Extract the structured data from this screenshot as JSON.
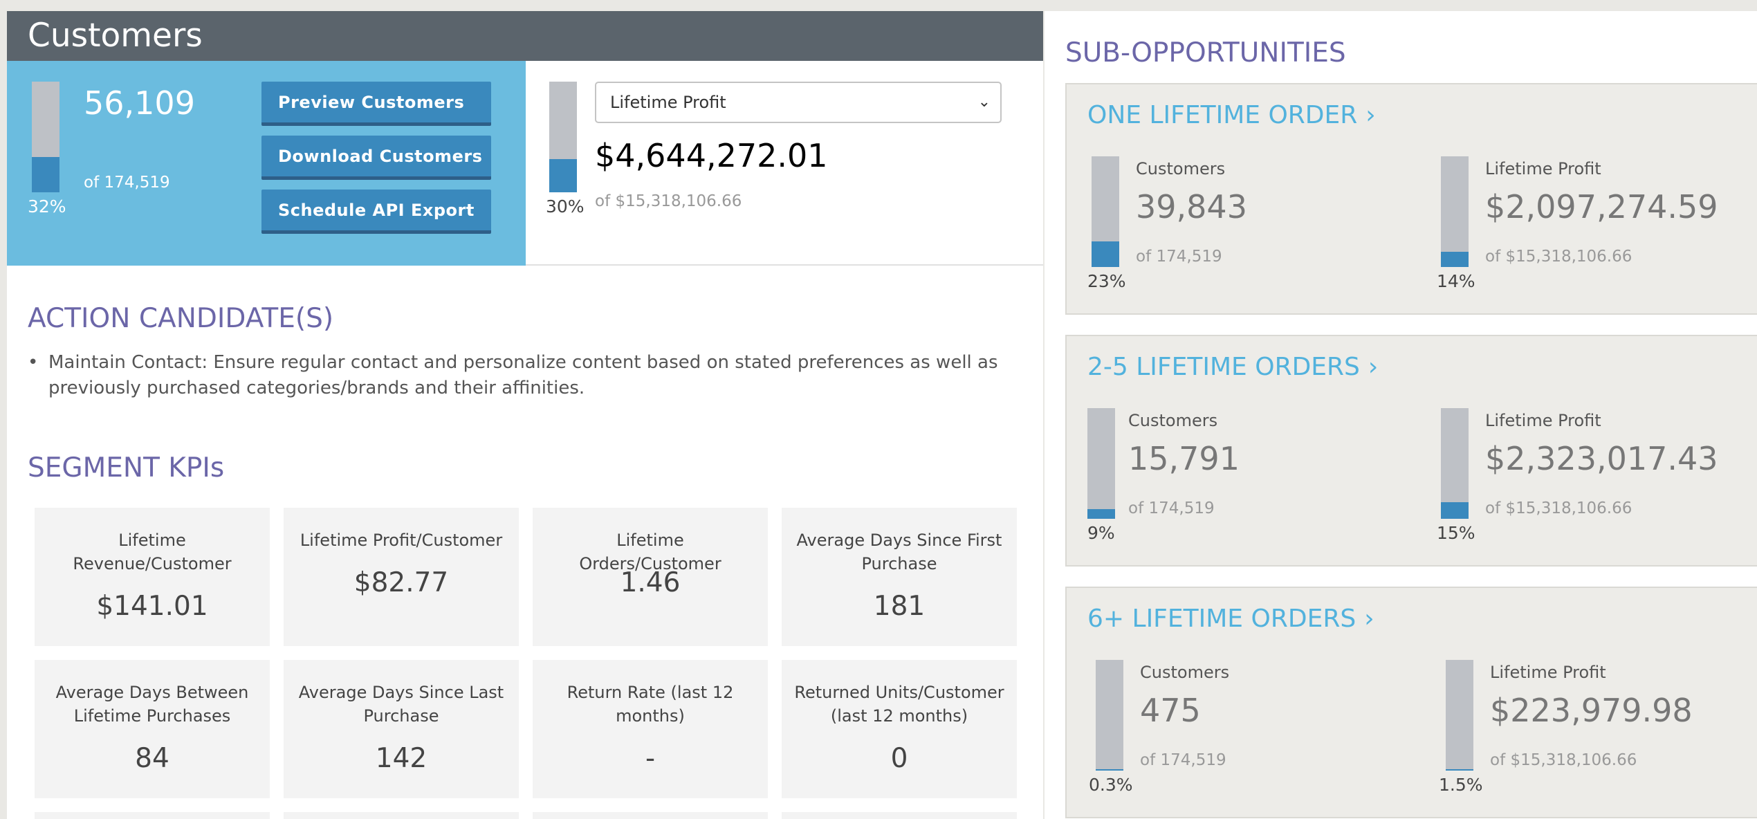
{
  "header": {
    "title": "Customers"
  },
  "summary": {
    "count": "56,109",
    "of": "of 174,519",
    "pct_label": "32%",
    "pct": 0.32,
    "buttons": {
      "preview": "Preview Customers",
      "download": "Download Customers",
      "schedule": "Schedule API Export"
    },
    "metric": {
      "selected": "Lifetime Profit",
      "value": "$4,644,272.01",
      "of": "of $15,318,106.66",
      "pct_label": "30%",
      "pct": 0.3
    }
  },
  "action_candidates": {
    "title": "ACTION CANDIDATE(S)",
    "items": [
      "Maintain Contact: Ensure regular contact and personalize content based on stated preferences as well as previously purchased categories/brands and their affinities."
    ]
  },
  "segment_kpis": {
    "title": "SEGMENT KPIs",
    "items": [
      {
        "label": "Lifetime Revenue/Customer",
        "value": "$141.01"
      },
      {
        "label": "Lifetime Profit/Customer",
        "value": "$82.77"
      },
      {
        "label": "Lifetime Orders/Customer",
        "value": "1.46"
      },
      {
        "label": "Average Days Since First Purchase",
        "value": "181"
      },
      {
        "label": "Average Days Between Lifetime Purchases",
        "value": "84"
      },
      {
        "label": "Average Days Since Last Purchase",
        "value": "142"
      },
      {
        "label": "Return Rate (last 12 months)",
        "value": "-"
      },
      {
        "label": "Returned Units/Customer (last 12 months)",
        "value": "0"
      }
    ]
  },
  "sub_opportunities": {
    "title": "SUB-OPPORTUNITIES",
    "arrow": "›",
    "cards": [
      {
        "title": "ONE LIFETIME ORDER",
        "customers": {
          "label": "Customers",
          "value": "39,843",
          "of": "of 174,519",
          "pct_label": "23%",
          "pct": 0.23
        },
        "profit": {
          "label": "Lifetime Profit",
          "value": "$2,097,274.59",
          "of": "of $15,318,106.66",
          "pct_label": "14%",
          "pct": 0.14
        }
      },
      {
        "title": "2-5 LIFETIME ORDERS",
        "customers": {
          "label": "Customers",
          "value": "15,791",
          "of": "of 174,519",
          "pct_label": "9%",
          "pct": 0.09
        },
        "profit": {
          "label": "Lifetime Profit",
          "value": "$2,323,017.43",
          "of": "of $15,318,106.66",
          "pct_label": "15%",
          "pct": 0.15
        }
      },
      {
        "title": "6+ LIFETIME ORDERS",
        "customers": {
          "label": "Customers",
          "value": "475",
          "of": "of 174,519",
          "pct_label": "0.3%",
          "pct": 0.003
        },
        "profit": {
          "label": "Lifetime Profit",
          "value": "$223,979.98",
          "of": "of $15,318,106.66",
          "pct_label": "1.5%",
          "pct": 0.015
        }
      }
    ]
  },
  "colors": {
    "accent_blue": "#3a89bd",
    "panel_blue": "#6bbcdf",
    "title_purple": "#6b66a8",
    "link_blue": "#52b2dd",
    "header_gray": "#5b646c"
  }
}
